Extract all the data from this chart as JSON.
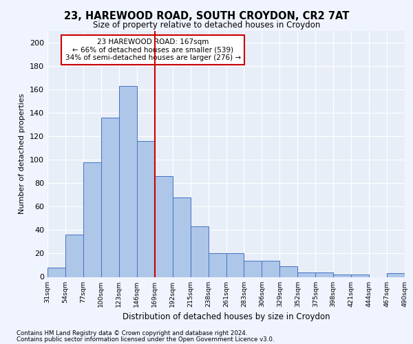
{
  "title1": "23, HAREWOOD ROAD, SOUTH CROYDON, CR2 7AT",
  "title2": "Size of property relative to detached houses in Croydon",
  "xlabel": "Distribution of detached houses by size in Croydon",
  "ylabel": "Number of detached properties",
  "bin_labels": [
    "31sqm",
    "54sqm",
    "77sqm",
    "100sqm",
    "123sqm",
    "146sqm",
    "169sqm",
    "192sqm",
    "215sqm",
    "238sqm",
    "261sqm",
    "283sqm",
    "306sqm",
    "329sqm",
    "352sqm",
    "375sqm",
    "398sqm",
    "421sqm",
    "444sqm",
    "467sqm",
    "490sqm"
  ],
  "bar_heights": [
    8,
    36,
    98,
    136,
    163,
    116,
    86,
    68,
    43,
    20,
    20,
    14,
    14,
    9,
    4,
    4,
    2,
    2,
    0,
    3
  ],
  "bar_color": "#AEC6E8",
  "bar_edge_color": "#4472C4",
  "vline_color": "#CC0000",
  "annotation_title": "23 HAREWOOD ROAD: 167sqm",
  "annotation_line1": "← 66% of detached houses are smaller (539)",
  "annotation_line2": "34% of semi-detached houses are larger (276) →",
  "annotation_box_color": "#CC0000",
  "ylim": [
    0,
    210
  ],
  "yticks": [
    0,
    20,
    40,
    60,
    80,
    100,
    120,
    140,
    160,
    180,
    200
  ],
  "footnote1": "Contains HM Land Registry data © Crown copyright and database right 2024.",
  "footnote2": "Contains public sector information licensed under the Open Government Licence v3.0.",
  "bg_color": "#F0F4FF",
  "plot_bg_color": "#E8EEF8"
}
